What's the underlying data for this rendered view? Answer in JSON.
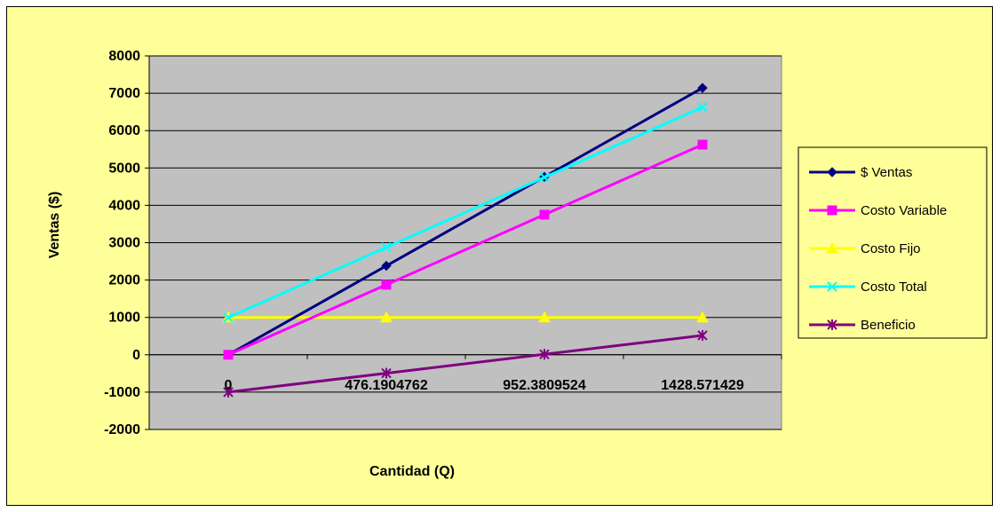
{
  "chart_data": {
    "type": "line",
    "title": "",
    "xlabel": "Cantidad (Q)",
    "ylabel": "Ventas ($)",
    "categories": [
      "0",
      "476.1904762",
      "952.3809524",
      "1428.571429"
    ],
    "ylim": [
      -2000,
      8000
    ],
    "yticks": [
      -2000,
      -1000,
      0,
      1000,
      2000,
      3000,
      4000,
      5000,
      6000,
      7000,
      8000
    ],
    "grid": "horizontal",
    "legend": "right",
    "plot_background": "#C0C0C0",
    "chart_background": "#FFFF99",
    "series": [
      {
        "name": "$ Ventas",
        "values": [
          0,
          2380.95,
          4761.9,
          7142.86
        ],
        "color": "#000080",
        "marker": "diamond"
      },
      {
        "name": "Costo Variable",
        "values": [
          0,
          1875,
          3750,
          5625
        ],
        "color": "#FF00FF",
        "marker": "square"
      },
      {
        "name": "Costo Fijo",
        "values": [
          1000,
          1000,
          1000,
          1000
        ],
        "color": "#FFFF00",
        "marker": "triangle"
      },
      {
        "name": "Costo Total",
        "values": [
          1000,
          2875,
          4750,
          6625
        ],
        "color": "#00FFFF",
        "marker": "x"
      },
      {
        "name": "Beneficio",
        "values": [
          -1000,
          -494.05,
          11.9,
          517.86
        ],
        "color": "#800080",
        "marker": "star"
      }
    ]
  }
}
